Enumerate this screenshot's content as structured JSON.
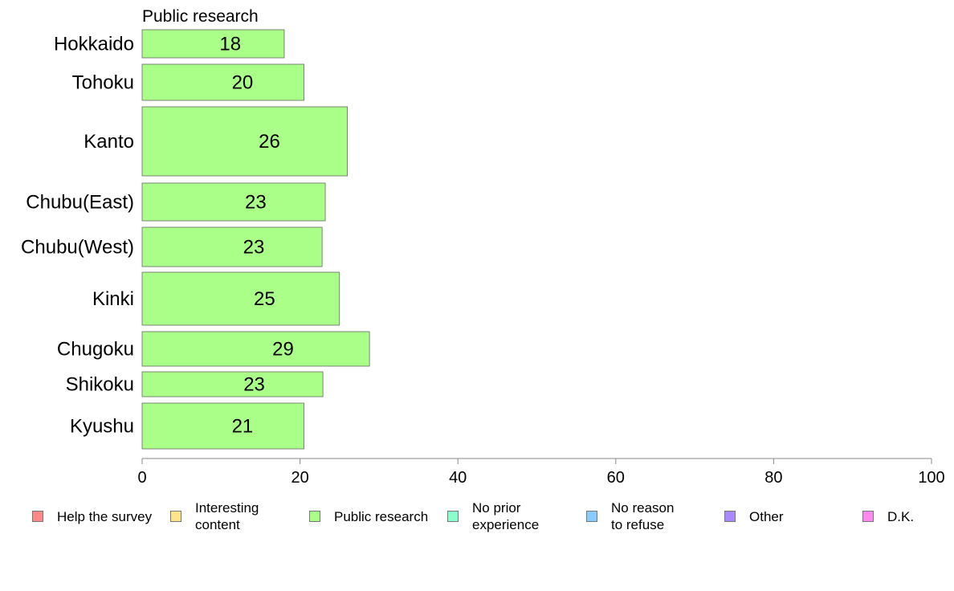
{
  "chart_data": {
    "type": "bar",
    "orientation": "horizontal",
    "title": "Public research",
    "categories": [
      "Hokkaido",
      "Tohoku",
      "Kanto",
      "Chubu(East)",
      "Chubu(West)",
      "Kinki",
      "Chugoku",
      "Shikoku",
      "Kyushu"
    ],
    "series": [
      {
        "name": "Public research",
        "values": [
          18,
          20.5,
          26,
          23.2,
          22.8,
          25,
          28.8,
          22.9,
          20.5
        ],
        "labels": [
          "18",
          "20",
          "26",
          "23",
          "23",
          "25",
          "29",
          "23",
          "21"
        ]
      }
    ],
    "xlim": [
      0,
      100
    ],
    "xticks": [
      "0",
      "20",
      "40",
      "60",
      "80",
      "100"
    ],
    "grid": false,
    "bar_color": "#aaff88",
    "bar_edge": "#666666"
  },
  "legend": [
    {
      "label": "Help the survey",
      "color": "#ff8888"
    },
    {
      "label": "Interesting\ncontent",
      "color": "#ffe488"
    },
    {
      "label": "Public research",
      "color": "#aaff88"
    },
    {
      "label": "No prior\nexperience",
      "color": "#88ffcc"
    },
    {
      "label": "No reason\nto refuse",
      "color": "#88ccff"
    },
    {
      "label": "Other",
      "color": "#aa88ff"
    },
    {
      "label": "D.K.",
      "color": "#ff88ee"
    }
  ]
}
